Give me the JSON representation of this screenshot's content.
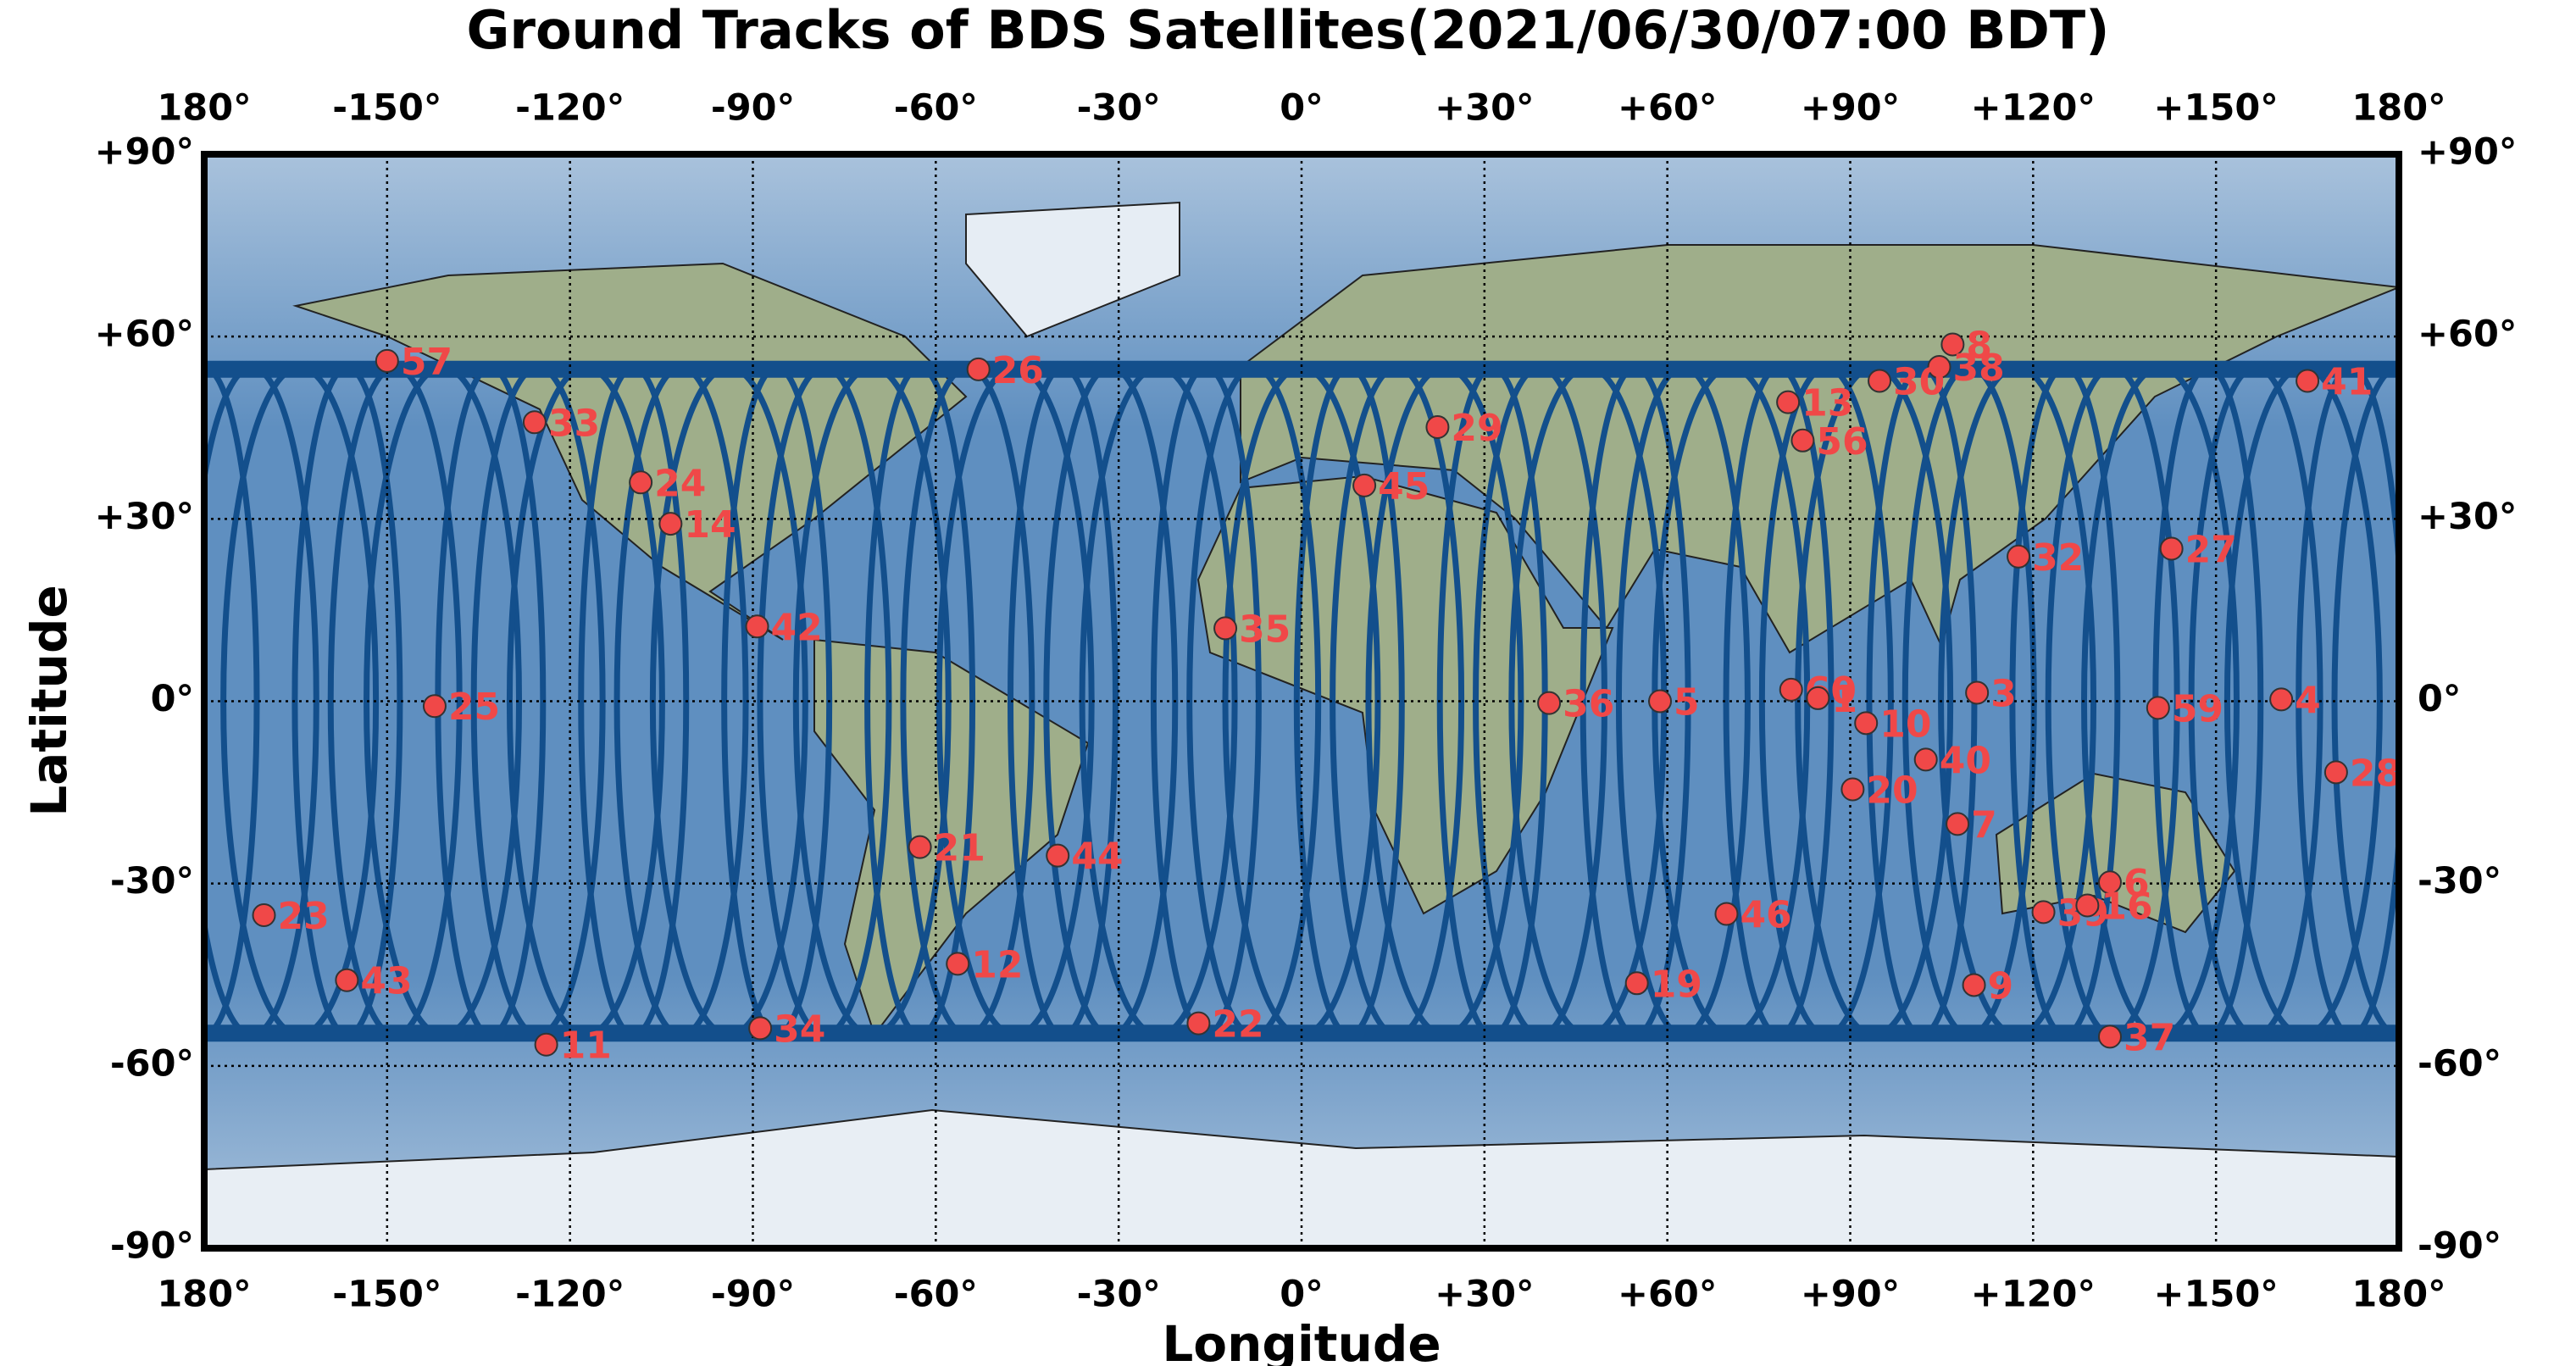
{
  "chart_data": {
    "type": "scatter",
    "title": "Ground Tracks of BDS Satellites(2021/06/30/07:00 BDT)",
    "x_label": "Longitude",
    "y_label": "Latitude",
    "point_labels": [
      "57",
      "26",
      "33",
      "24",
      "14",
      "42",
      "25",
      "23",
      "43",
      "11",
      "34",
      "21",
      "12",
      "44",
      "22",
      "35",
      "45",
      "29",
      "36",
      "5",
      "46",
      "19",
      "13",
      "56",
      "60",
      "1",
      "10",
      "20",
      "40",
      "3",
      "7",
      "9",
      "8",
      "38",
      "30",
      "32",
      "27",
      "41",
      "4",
      "59",
      "28",
      "6",
      "39",
      "16",
      "37"
    ],
    "x": [
      -150,
      -53,
      -125.8,
      -108.4,
      -103.5,
      -89.3,
      -142.2,
      -170.2,
      -156.6,
      -123.9,
      -88.8,
      -62.6,
      -56.4,
      -40,
      -16.9,
      -12.5,
      10.3,
      22.3,
      40.6,
      58.8,
      69.7,
      55,
      79.8,
      82.2,
      80.3,
      84.7,
      92.6,
      90.4,
      102.4,
      110.8,
      107.6,
      110.3,
      106.8,
      104.6,
      94.8,
      117.6,
      142.7,
      165,
      160.7,
      140.5,
      169.7,
      132.6,
      121.7,
      128.9,
      132.6
    ],
    "values": [
      56,
      54.6,
      45.9,
      36,
      29.2,
      12.3,
      -0.8,
      -35.2,
      -45.9,
      -56.5,
      -53.8,
      -24,
      -43.2,
      -25.4,
      -53,
      12,
      35.5,
      45.1,
      -0.3,
      0,
      -35,
      -46.4,
      49.2,
      42.9,
      1.9,
      0.5,
      -3.6,
      -14.5,
      -9.6,
      1.4,
      -20.2,
      -46.7,
      58.7,
      55,
      52.7,
      23.8,
      25.1,
      52.7,
      0.3,
      -1.1,
      -11.7,
      -29.8,
      -34.7,
      -33.6,
      -55.2
    ],
    "color": "#f04848",
    "label_color": "#f04848",
    "track_color": "#134f8c",
    "xlim": [
      -180,
      180
    ],
    "ylim": [
      -90,
      90
    ],
    "xticks": [
      {
        "value": -180,
        "label": "180°"
      },
      {
        "value": -150,
        "label": "-150°"
      },
      {
        "value": -120,
        "label": "-120°"
      },
      {
        "value": -90,
        "label": "-90°"
      },
      {
        "value": -60,
        "label": "-60°"
      },
      {
        "value": -30,
        "label": "-30°"
      },
      {
        "value": 0,
        "label": "0°"
      },
      {
        "value": 30,
        "label": "+30°"
      },
      {
        "value": 60,
        "label": "+60°"
      },
      {
        "value": 90,
        "label": "+90°"
      },
      {
        "value": 120,
        "label": "+120°"
      },
      {
        "value": 150,
        "label": "+150°"
      },
      {
        "value": 180,
        "label": "180°"
      }
    ],
    "yticks": [
      {
        "value": -90,
        "label": "-90°"
      },
      {
        "value": -60,
        "label": "-60°"
      },
      {
        "value": -30,
        "label": "-30°"
      },
      {
        "value": 0,
        "label": "0°"
      },
      {
        "value": 30,
        "label": "+30°"
      },
      {
        "value": 60,
        "label": "+60°"
      },
      {
        "value": 90,
        "label": "+90°"
      }
    ],
    "grid": true
  }
}
